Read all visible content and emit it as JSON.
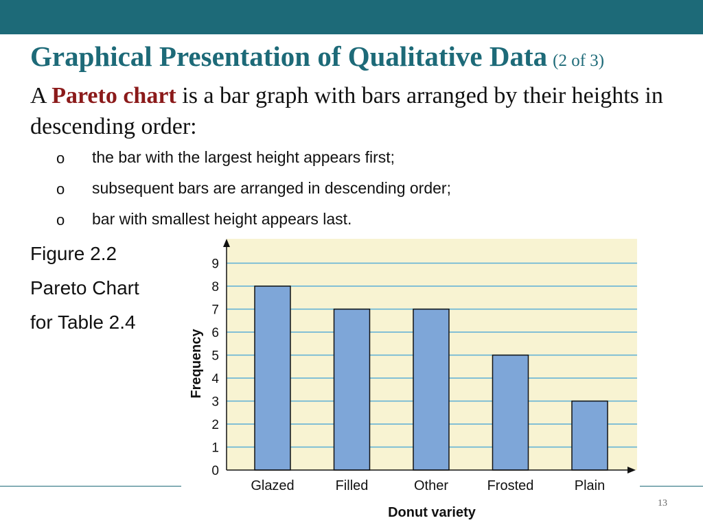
{
  "slide": {
    "title": "Graphical Presentation of Qualitative Data",
    "title_suffix": "(2 of 3)",
    "intro_prefix": "A ",
    "intro_term": "Pareto chart",
    "intro_rest": " is a bar graph with bars arranged by their heights in descending order:",
    "bullet_marker": "o",
    "bullets": [
      "the bar with the largest height appears first;",
      "subsequent bars are arranged in descending order;",
      "bar with smallest height appears last."
    ],
    "caption": [
      "Figure 2.2",
      "Pareto Chart",
      "for Table 2.4"
    ],
    "page_number": "13"
  },
  "colors": {
    "header_band": "#1d6a78",
    "title": "#1d6a78",
    "term": "#8b1a1a",
    "plot_background": "#f8f3d2",
    "grid_line": "#5aaed6",
    "bar_fill": "#7ea6d8",
    "bar_stroke": "#111111"
  },
  "chart_data": {
    "type": "bar",
    "categories": [
      "Glazed",
      "Filled",
      "Other",
      "Frosted",
      "Plain"
    ],
    "values": [
      8,
      7,
      7,
      5,
      3
    ],
    "title": "",
    "xlabel": "Donut variety",
    "ylabel": "Frequency",
    "ylim": [
      0,
      9
    ],
    "yticks": [
      0,
      1,
      2,
      3,
      4,
      5,
      6,
      7,
      8,
      9
    ],
    "grid": true,
    "legend": "none"
  }
}
